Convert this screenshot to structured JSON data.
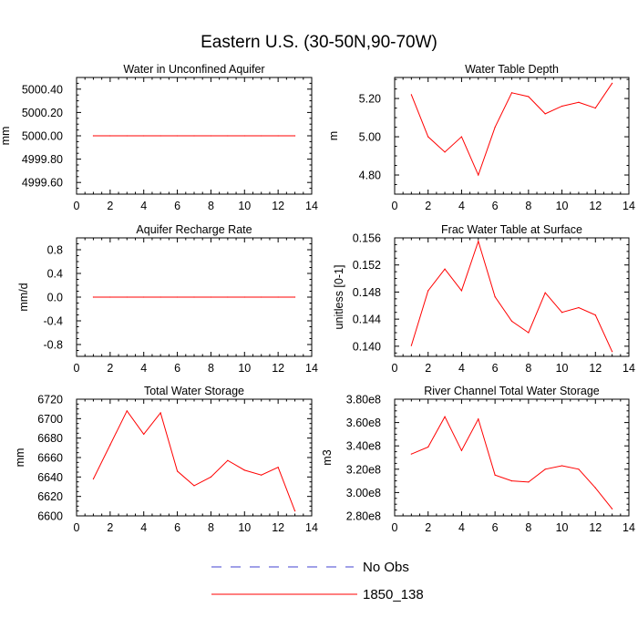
{
  "figure": {
    "title": "Eastern U.S. (30-50N,90-70W)"
  },
  "legend": {
    "entries": [
      {
        "label": "No Obs",
        "color": "#4040d0",
        "style": "dashed"
      },
      {
        "label": "1850_138",
        "color": "#ff0000",
        "style": "solid"
      }
    ]
  },
  "chart_data": [
    {
      "type": "line",
      "title": "Water in Unconfined Aquifer",
      "xlabel": "",
      "ylabel": "mm",
      "xlim": [
        0,
        14
      ],
      "ylim": [
        4999.5,
        5000.5
      ],
      "xticks": [
        0,
        2,
        4,
        6,
        8,
        10,
        12,
        14
      ],
      "yticks": [
        4999.6,
        4999.8,
        5000.0,
        5000.2,
        5000.4
      ],
      "yticklabels": [
        "4999.60",
        "4999.80",
        "5000.00",
        "5000.20",
        "5000.40"
      ],
      "series": [
        {
          "name": "1850_138",
          "color": "#ff0000",
          "x": [
            1,
            2,
            3,
            4,
            5,
            6,
            7,
            8,
            9,
            10,
            11,
            12,
            13
          ],
          "values": [
            5000,
            5000,
            5000,
            5000,
            5000,
            5000,
            5000,
            5000,
            5000,
            5000,
            5000,
            5000,
            5000
          ]
        }
      ]
    },
    {
      "type": "line",
      "title": "Water Table Depth",
      "xlabel": "",
      "ylabel": "m",
      "xlim": [
        0,
        14
      ],
      "ylim": [
        4.7,
        5.31
      ],
      "xticks": [
        0,
        2,
        4,
        6,
        8,
        10,
        12,
        14
      ],
      "yticks": [
        4.8,
        5.0,
        5.2
      ],
      "yticklabels": [
        "4.80",
        "5.00",
        "5.20"
      ],
      "series": [
        {
          "name": "1850_138",
          "color": "#ff0000",
          "x": [
            1,
            2,
            3,
            4,
            5,
            6,
            7,
            8,
            9,
            10,
            11,
            12,
            13
          ],
          "values": [
            5.22,
            5.0,
            4.92,
            5.0,
            4.8,
            5.05,
            5.23,
            5.21,
            5.12,
            5.16,
            5.18,
            5.15,
            5.28
          ]
        }
      ]
    },
    {
      "type": "line",
      "title": "Aquifer Recharge Rate",
      "xlabel": "",
      "ylabel": "mm/d",
      "xlim": [
        0,
        14
      ],
      "ylim": [
        -1.0,
        1.0
      ],
      "xticks": [
        0,
        2,
        4,
        6,
        8,
        10,
        12,
        14
      ],
      "yticks": [
        -0.8,
        -0.4,
        0.0,
        0.4,
        0.8
      ],
      "yticklabels": [
        "-0.8",
        "-0.4",
        "0.0",
        "0.4",
        "0.8"
      ],
      "series": [
        {
          "name": "1850_138",
          "color": "#ff0000",
          "x": [
            1,
            2,
            3,
            4,
            5,
            6,
            7,
            8,
            9,
            10,
            11,
            12,
            13
          ],
          "values": [
            0,
            0,
            0,
            0,
            0,
            0,
            0,
            0,
            0,
            0,
            0,
            0,
            0
          ]
        }
      ]
    },
    {
      "type": "line",
      "title": "Frac Water Table at Surface",
      "xlabel": "",
      "ylabel": "unitless [0-1]",
      "xlim": [
        0,
        14
      ],
      "ylim": [
        0.1385,
        0.156
      ],
      "xticks": [
        0,
        2,
        4,
        6,
        8,
        10,
        12,
        14
      ],
      "yticks": [
        0.14,
        0.144,
        0.148,
        0.152,
        0.156
      ],
      "yticklabels": [
        "0.140",
        "0.144",
        "0.148",
        "0.152",
        "0.156"
      ],
      "series": [
        {
          "name": "1850_138",
          "color": "#ff0000",
          "x": [
            1,
            2,
            3,
            4,
            5,
            6,
            7,
            8,
            9,
            10,
            11,
            12,
            13
          ],
          "values": [
            0.1401,
            0.1482,
            0.1514,
            0.1482,
            0.1555,
            0.1473,
            0.1437,
            0.142,
            0.1479,
            0.145,
            0.1457,
            0.1446,
            0.1392
          ]
        }
      ]
    },
    {
      "type": "line",
      "title": "Total Water Storage",
      "xlabel": "",
      "ylabel": "mm",
      "xlim": [
        0,
        14
      ],
      "ylim": [
        6600,
        6720
      ],
      "xticks": [
        0,
        2,
        4,
        6,
        8,
        10,
        12,
        14
      ],
      "yticks": [
        6600,
        6620,
        6640,
        6660,
        6680,
        6700,
        6720
      ],
      "yticklabels": [
        "6600",
        "6620",
        "6640",
        "6660",
        "6680",
        "6700",
        "6720"
      ],
      "series": [
        {
          "name": "1850_138",
          "color": "#ff0000",
          "x": [
            1,
            2,
            3,
            4,
            5,
            6,
            7,
            8,
            9,
            10,
            11,
            12,
            13
          ],
          "values": [
            6638,
            6673,
            6708,
            6684,
            6706,
            6646,
            6631,
            6640,
            6657,
            6647,
            6642,
            6650,
            6605
          ]
        }
      ]
    },
    {
      "type": "line",
      "title": "River Channel Total Water Storage",
      "xlabel": "",
      "ylabel": "m3",
      "xlim": [
        0,
        14
      ],
      "ylim": [
        280000000.0,
        380000000.0
      ],
      "xticks": [
        0,
        2,
        4,
        6,
        8,
        10,
        12,
        14
      ],
      "yticks": [
        280000000.0,
        300000000.0,
        320000000.0,
        340000000.0,
        360000000.0,
        380000000.0
      ],
      "yticklabels": [
        "2.80e8",
        "3.00e8",
        "3.20e8",
        "3.40e8",
        "3.60e8",
        "3.80e8"
      ],
      "series": [
        {
          "name": "1850_138",
          "color": "#ff0000",
          "x": [
            1,
            2,
            3,
            4,
            5,
            6,
            7,
            8,
            9,
            10,
            11,
            12,
            13
          ],
          "values": [
            333000000.0,
            339000000.0,
            365000000.0,
            336000000.0,
            363000000.0,
            315000000.0,
            310000000.0,
            309000000.0,
            320000000.0,
            323000000.0,
            320000000.0,
            304000000.0,
            286000000.0
          ]
        }
      ]
    }
  ]
}
